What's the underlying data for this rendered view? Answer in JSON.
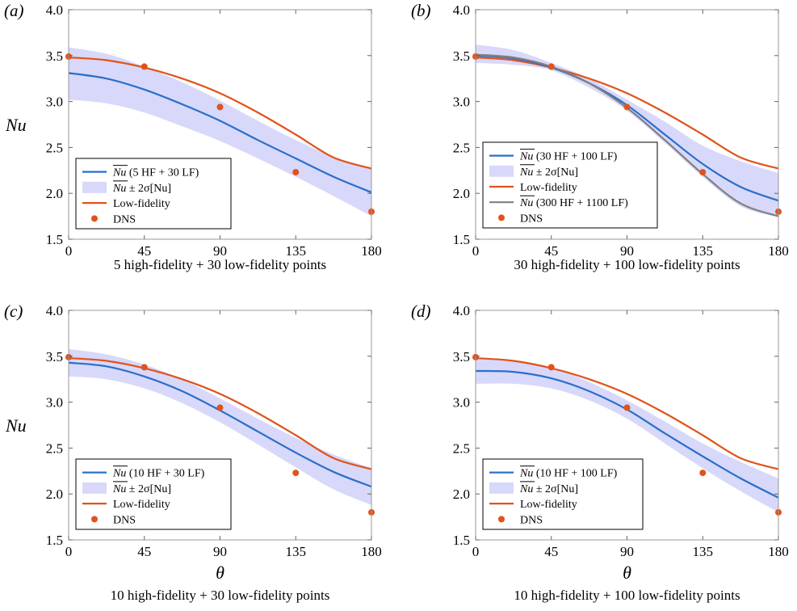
{
  "chart_data": [
    {
      "type": "line",
      "panel_label": "(a)",
      "ylabel": "Nu",
      "xlabel": "",
      "caption": "5 high-fidelity + 30 low-fidelity points",
      "xlim": [
        0,
        180
      ],
      "ylim": [
        1.5,
        4.0
      ],
      "xticks": [
        "0",
        "45",
        "90",
        "135",
        "180"
      ],
      "yticks": [
        "1.5",
        "2.0",
        "2.5",
        "3.0",
        "3.5",
        "4.0"
      ],
      "grid": false,
      "legend_position": "bottom-left",
      "series": [
        {
          "name": "Nu (5 HF + 30 LF)",
          "kind": "mean",
          "color": "#2a6fc9",
          "x": [
            0,
            22.5,
            45,
            67.5,
            90,
            112.5,
            135,
            157.5,
            180
          ],
          "y": [
            3.31,
            3.25,
            3.13,
            2.97,
            2.79,
            2.58,
            2.38,
            2.18,
            2.01
          ]
        },
        {
          "name": "Nu ± 2σ[Nu]",
          "kind": "band",
          "color": "#c8c8f8",
          "x": [
            0,
            22.5,
            45,
            67.5,
            90,
            112.5,
            135,
            157.5,
            180
          ],
          "lower": [
            3.02,
            2.98,
            2.88,
            2.73,
            2.57,
            2.38,
            2.18,
            1.97,
            1.75
          ],
          "upper": [
            3.59,
            3.52,
            3.38,
            3.21,
            3.01,
            2.79,
            2.58,
            2.4,
            2.27
          ]
        },
        {
          "name": "Low-fidelity",
          "kind": "line",
          "color": "#e0531b",
          "x": [
            0,
            22.5,
            45,
            67.5,
            90,
            112.5,
            135,
            157.5,
            180
          ],
          "y": [
            3.48,
            3.45,
            3.37,
            3.25,
            3.09,
            2.88,
            2.64,
            2.39,
            2.27
          ]
        },
        {
          "name": "DNS",
          "kind": "scatter",
          "color": "#e0531b",
          "x": [
            0,
            45,
            90,
            135,
            180
          ],
          "y": [
            3.49,
            3.38,
            2.94,
            2.23,
            1.8
          ]
        }
      ],
      "legend": [
        {
          "label": "Nu",
          "suffix": "(5 HF + 30 LF)",
          "kind": "mean"
        },
        {
          "label": "Nu",
          "suffix": "± 2σ[Nu]",
          "kind": "band"
        },
        {
          "label": "Low-fidelity",
          "suffix": "",
          "kind": "line"
        },
        {
          "label": "DNS",
          "suffix": "",
          "kind": "scatter"
        }
      ]
    },
    {
      "type": "line",
      "panel_label": "(b)",
      "ylabel": "",
      "xlabel": "",
      "caption": "30 high-fidelity + 100 low-fidelity points",
      "xlim": [
        0,
        180
      ],
      "ylim": [
        1.5,
        4.0
      ],
      "xticks": [
        "0",
        "45",
        "90",
        "135",
        "180"
      ],
      "yticks": [
        "1.5",
        "2.0",
        "2.5",
        "3.0",
        "3.5",
        "4.0"
      ],
      "grid": false,
      "legend_position": "bottom-left",
      "series": [
        {
          "name": "Nu (30 HF + 100 LF)",
          "kind": "mean",
          "color": "#2a6fc9",
          "x": [
            0,
            22.5,
            45,
            67.5,
            90,
            112.5,
            135,
            157.5,
            180
          ],
          "y": [
            3.5,
            3.47,
            3.37,
            3.2,
            2.96,
            2.64,
            2.32,
            2.07,
            1.92
          ]
        },
        {
          "name": "Nu ± 2σ[Nu]",
          "kind": "band",
          "color": "#c8c8f8",
          "x": [
            0,
            22.5,
            45,
            67.5,
            90,
            112.5,
            135,
            157.5,
            180
          ],
          "lower": [
            3.42,
            3.4,
            3.34,
            3.15,
            2.9,
            2.55,
            2.18,
            1.86,
            1.74
          ],
          "upper": [
            3.62,
            3.56,
            3.42,
            3.25,
            3.02,
            2.78,
            2.52,
            2.35,
            2.22
          ]
        },
        {
          "name": "Low-fidelity",
          "kind": "line",
          "color": "#e0531b",
          "x": [
            0,
            22.5,
            45,
            67.5,
            90,
            112.5,
            135,
            157.5,
            180
          ],
          "y": [
            3.48,
            3.45,
            3.37,
            3.25,
            3.09,
            2.88,
            2.64,
            2.39,
            2.27
          ]
        },
        {
          "name": "Nu (300 HF + 1100 LF)",
          "kind": "mean",
          "color": "#808080",
          "x": [
            0,
            22.5,
            45,
            67.5,
            90,
            112.5,
            135,
            157.5,
            180
          ],
          "y": [
            3.51,
            3.48,
            3.38,
            3.2,
            2.93,
            2.58,
            2.21,
            1.89,
            1.75
          ]
        },
        {
          "name": "DNS",
          "kind": "scatter",
          "color": "#e0531b",
          "x": [
            0,
            45,
            90,
            135,
            180
          ],
          "y": [
            3.49,
            3.38,
            2.94,
            2.23,
            1.8
          ]
        }
      ],
      "legend": [
        {
          "label": "Nu",
          "suffix": "(30 HF + 100 LF)",
          "kind": "mean",
          "color": "#2a6fc9"
        },
        {
          "label": "Nu",
          "suffix": "± 2σ[Nu]",
          "kind": "band"
        },
        {
          "label": "Low-fidelity",
          "suffix": "",
          "kind": "line"
        },
        {
          "label": "Nu",
          "suffix": "(300 HF + 1100 LF)",
          "kind": "mean",
          "color": "#808080"
        },
        {
          "label": "DNS",
          "suffix": "",
          "kind": "scatter"
        }
      ]
    },
    {
      "type": "line",
      "panel_label": "(c)",
      "ylabel": "Nu",
      "xlabel": "θ",
      "caption": "10 high-fidelity + 30 low-fidelity points",
      "xlim": [
        0,
        180
      ],
      "ylim": [
        1.5,
        4.0
      ],
      "xticks": [
        "0",
        "45",
        "90",
        "135",
        "180"
      ],
      "yticks": [
        "1.5",
        "2.0",
        "2.5",
        "3.0",
        "3.5",
        "4.0"
      ],
      "grid": false,
      "legend_position": "bottom-left",
      "series": [
        {
          "name": "Nu (10 HF + 30 LF)",
          "kind": "mean",
          "color": "#2a6fc9",
          "x": [
            0,
            22.5,
            45,
            67.5,
            90,
            112.5,
            135,
            157.5,
            180
          ],
          "y": [
            3.43,
            3.39,
            3.28,
            3.12,
            2.91,
            2.68,
            2.45,
            2.24,
            2.08
          ]
        },
        {
          "name": "Nu ± 2σ[Nu]",
          "kind": "band",
          "color": "#c8c8f8",
          "x": [
            0,
            22.5,
            45,
            67.5,
            90,
            112.5,
            135,
            157.5,
            180
          ],
          "lower": [
            3.28,
            3.25,
            3.15,
            2.99,
            2.78,
            2.54,
            2.29,
            2.05,
            1.88
          ],
          "upper": [
            3.58,
            3.52,
            3.41,
            3.25,
            3.04,
            2.82,
            2.61,
            2.43,
            2.28
          ]
        },
        {
          "name": "Low-fidelity",
          "kind": "line",
          "color": "#e0531b",
          "x": [
            0,
            22.5,
            45,
            67.5,
            90,
            112.5,
            135,
            157.5,
            180
          ],
          "y": [
            3.48,
            3.45,
            3.37,
            3.25,
            3.09,
            2.88,
            2.64,
            2.39,
            2.27
          ]
        },
        {
          "name": "DNS",
          "kind": "scatter",
          "color": "#e0531b",
          "x": [
            0,
            45,
            90,
            135,
            180
          ],
          "y": [
            3.49,
            3.38,
            2.94,
            2.23,
            1.8
          ]
        }
      ],
      "legend": [
        {
          "label": "Nu",
          "suffix": "(10 HF + 30 LF)",
          "kind": "mean"
        },
        {
          "label": "Nu",
          "suffix": "± 2σ[Nu]",
          "kind": "band"
        },
        {
          "label": "Low-fidelity",
          "suffix": "",
          "kind": "line"
        },
        {
          "label": "DNS",
          "suffix": "",
          "kind": "scatter"
        }
      ]
    },
    {
      "type": "line",
      "panel_label": "(d)",
      "ylabel": "",
      "xlabel": "θ",
      "caption": "10 high-fidelity + 100 low-fidelity points",
      "xlim": [
        0,
        180
      ],
      "ylim": [
        1.5,
        4.0
      ],
      "xticks": [
        "0",
        "45",
        "90",
        "135",
        "180"
      ],
      "yticks": [
        "1.5",
        "2.0",
        "2.5",
        "3.0",
        "3.5",
        "4.0"
      ],
      "grid": false,
      "legend_position": "bottom-left",
      "series": [
        {
          "name": "Nu (10 HF + 100 LF)",
          "kind": "mean",
          "color": "#2a6fc9",
          "x": [
            0,
            22.5,
            45,
            67.5,
            90,
            112.5,
            135,
            157.5,
            180
          ],
          "y": [
            3.34,
            3.33,
            3.26,
            3.12,
            2.92,
            2.66,
            2.41,
            2.17,
            1.96
          ]
        },
        {
          "name": "Nu ± 2σ[Nu]",
          "kind": "band",
          "color": "#c8c8f8",
          "x": [
            0,
            22.5,
            45,
            67.5,
            90,
            112.5,
            135,
            157.5,
            180
          ],
          "lower": [
            3.2,
            3.2,
            3.15,
            3.02,
            2.82,
            2.55,
            2.28,
            2.03,
            1.8
          ],
          "upper": [
            3.48,
            3.46,
            3.38,
            3.22,
            3.02,
            2.79,
            2.55,
            2.35,
            2.17
          ]
        },
        {
          "name": "Low-fidelity",
          "kind": "line",
          "color": "#e0531b",
          "x": [
            0,
            22.5,
            45,
            67.5,
            90,
            112.5,
            135,
            157.5,
            180
          ],
          "y": [
            3.48,
            3.45,
            3.37,
            3.25,
            3.09,
            2.88,
            2.64,
            2.39,
            2.27
          ]
        },
        {
          "name": "DNS",
          "kind": "scatter",
          "color": "#e0531b",
          "x": [
            0,
            45,
            90,
            135,
            180
          ],
          "y": [
            3.49,
            3.38,
            2.94,
            2.23,
            1.8
          ]
        }
      ],
      "legend": [
        {
          "label": "Nu",
          "suffix": "(10 HF + 100 LF)",
          "kind": "mean"
        },
        {
          "label": "Nu",
          "suffix": "± 2σ[Nu]",
          "kind": "band"
        },
        {
          "label": "Low-fidelity",
          "suffix": "",
          "kind": "line"
        },
        {
          "label": "DNS",
          "suffix": "",
          "kind": "scatter"
        }
      ]
    }
  ]
}
